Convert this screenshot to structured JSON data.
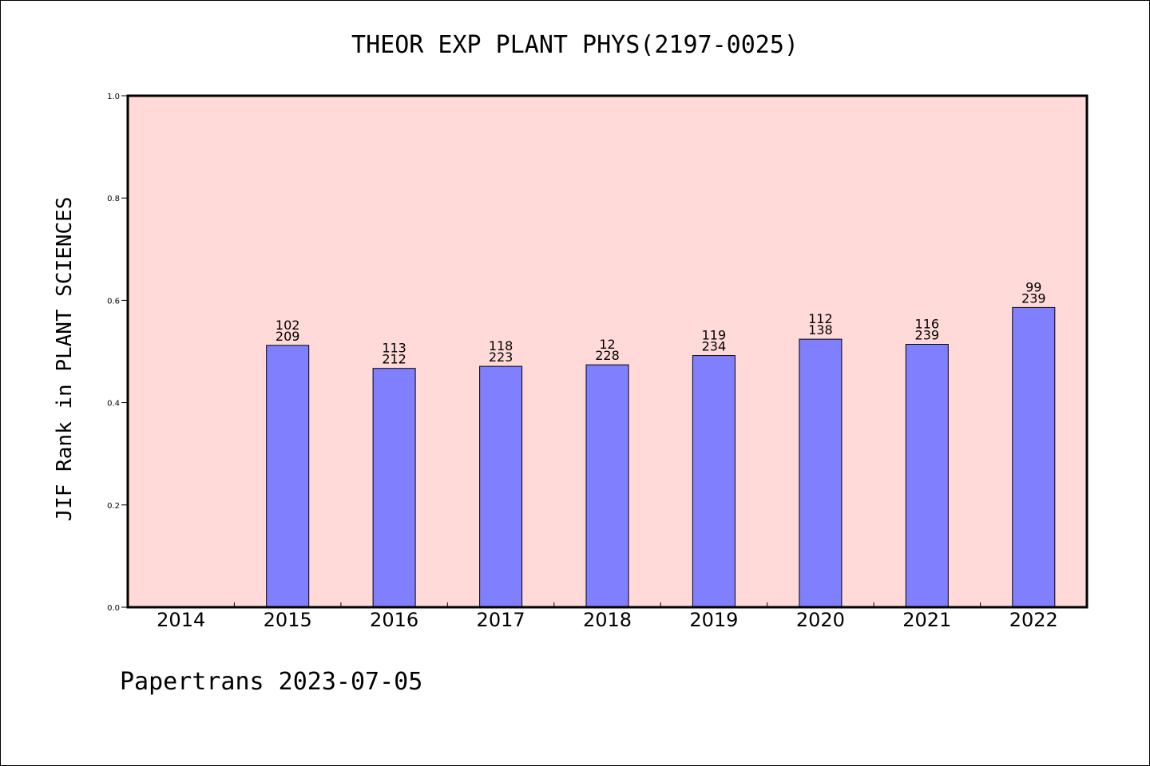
{
  "chart_data": {
    "type": "bar",
    "title": "THEOR EXP PLANT PHYS(2197-0025)",
    "ylabel": "JIF Rank in PLANT SCIENCES",
    "xlabel": "",
    "ylim": [
      0,
      1.0
    ],
    "yticks": [
      "0.0",
      "0.2",
      "0.4",
      "0.6",
      "0.8",
      "1.0"
    ],
    "categories": [
      "2014",
      "2015",
      "2016",
      "2017",
      "2018",
      "2019",
      "2020",
      "2021",
      "2022"
    ],
    "values": [
      null,
      0.512,
      0.467,
      0.471,
      0.474,
      0.492,
      0.524,
      0.514,
      0.586
    ],
    "labels_top": [
      "",
      "102",
      "113",
      "118",
      "12",
      "119",
      "112",
      "116",
      "99"
    ],
    "labels_bottom": [
      "",
      "209",
      "212",
      "223",
      "228",
      "234",
      "138",
      "239",
      "239"
    ],
    "plot_background": "#ffdad8",
    "bar_color": "#8080ff",
    "grid": false
  },
  "footer": "Papertrans 2023-07-05"
}
